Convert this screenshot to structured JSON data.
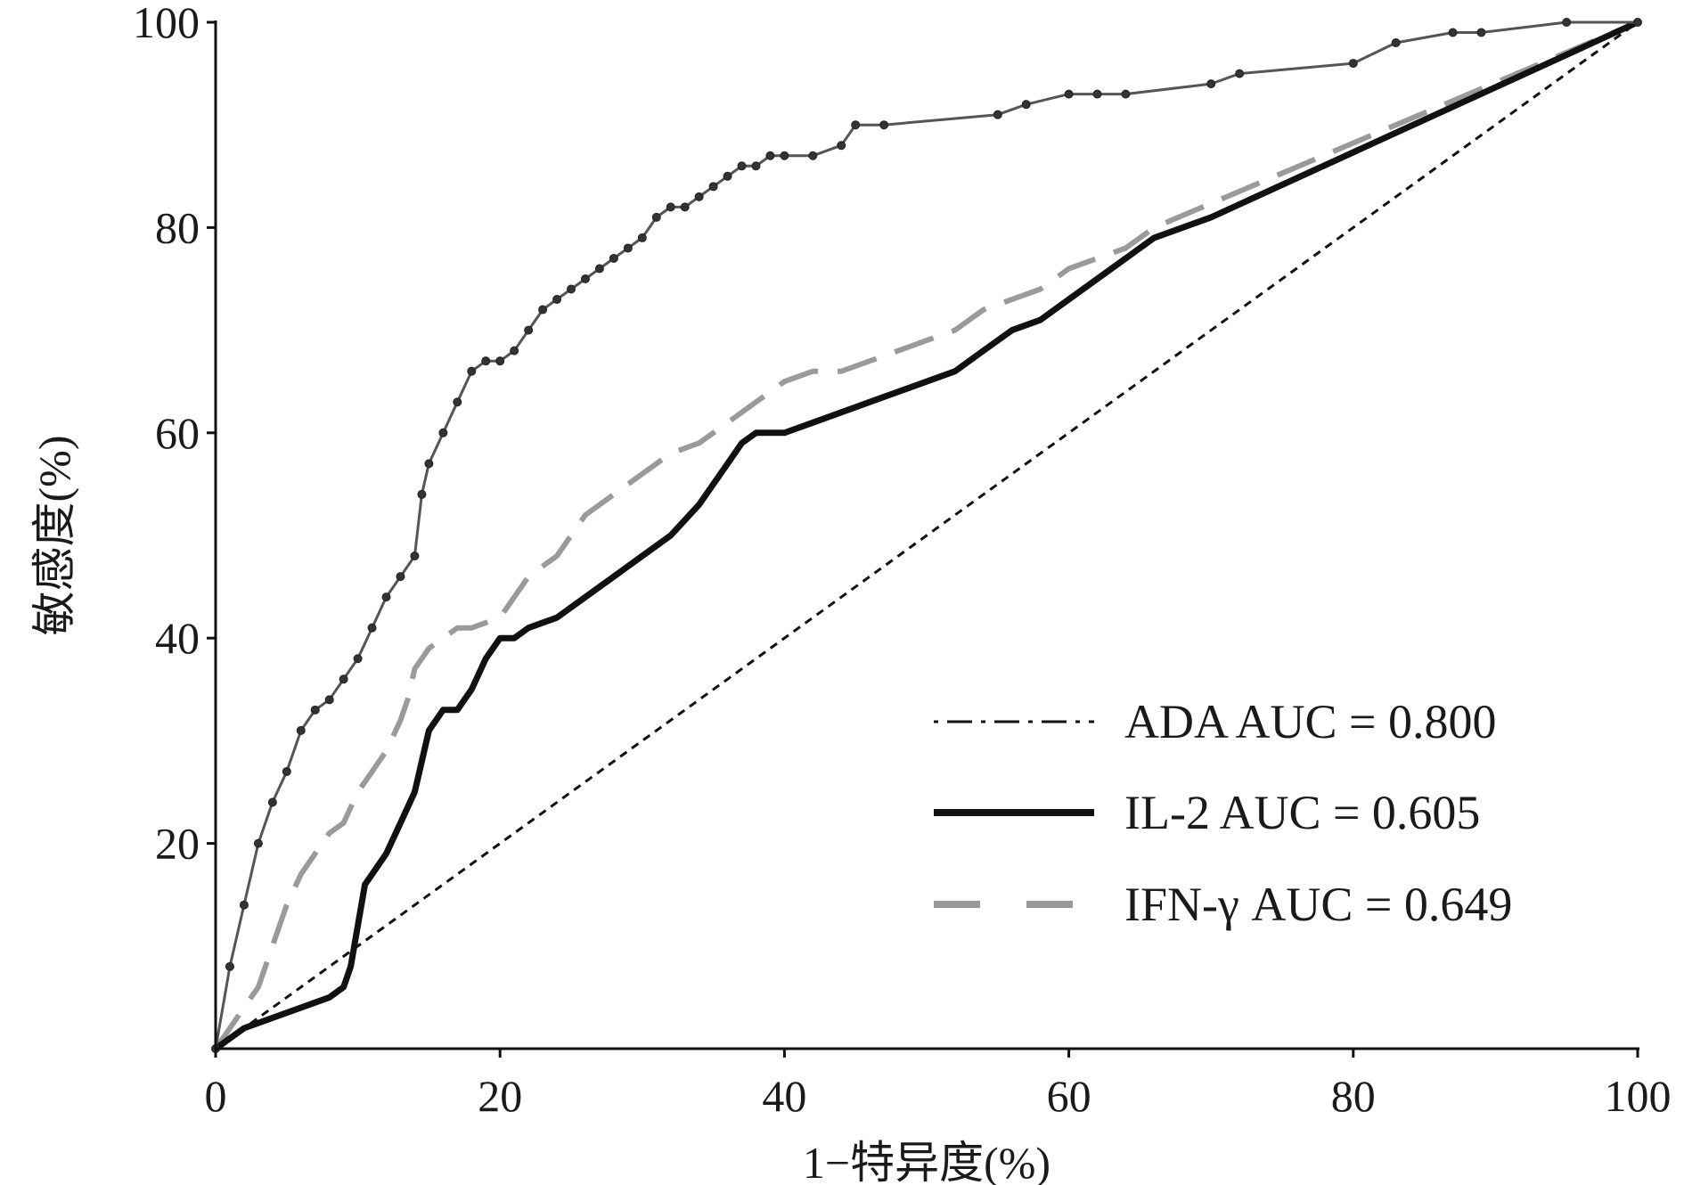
{
  "chart_data": {
    "type": "line",
    "title": "",
    "xlabel": "1−特异度(%)",
    "ylabel": "敏感度(%)",
    "xlim": [
      0,
      100
    ],
    "ylim": [
      0,
      100
    ],
    "x_ticks": [
      "0",
      "20",
      "40",
      "60",
      "80",
      "100"
    ],
    "y_ticks": [
      "20",
      "40",
      "60",
      "80",
      "100"
    ],
    "legend_position": "bottom-right",
    "reference_line": "diagonal",
    "series": [
      {
        "name": "ADA AUC = 0.800",
        "color": "#555555",
        "style": "solid-with-markers",
        "x": [
          0,
          1,
          2,
          3,
          4,
          5,
          6,
          7,
          8,
          9,
          10,
          11,
          12,
          13,
          14,
          14.5,
          15,
          16,
          17,
          18,
          19,
          20,
          21,
          22,
          23,
          24,
          25,
          26,
          27,
          28,
          29,
          30,
          31,
          32,
          33,
          34,
          35,
          36,
          37,
          38,
          39,
          40,
          42,
          44,
          45,
          47,
          55,
          57,
          60,
          62,
          64,
          70,
          72,
          80,
          83,
          87,
          89,
          95,
          100
        ],
        "y": [
          0,
          8,
          14,
          20,
          24,
          27,
          31,
          33,
          34,
          36,
          38,
          41,
          44,
          46,
          48,
          54,
          57,
          60,
          63,
          66,
          67,
          67,
          68,
          70,
          72,
          73,
          74,
          75,
          76,
          77,
          78,
          79,
          81,
          82,
          82,
          83,
          84,
          85,
          86,
          86,
          87,
          87,
          87,
          88,
          90,
          90,
          91,
          92,
          93,
          93,
          93,
          94,
          95,
          96,
          98,
          99,
          99,
          100,
          100
        ]
      },
      {
        "name": "IL-2 AUC = 0.605",
        "color": "#111111",
        "style": "thick-solid",
        "x": [
          0,
          2,
          4,
          6,
          8,
          9,
          9.5,
          10,
          10.5,
          11,
          12,
          13,
          14,
          14.5,
          15,
          16,
          17,
          18,
          19,
          20,
          21,
          22,
          24,
          26,
          28,
          30,
          32,
          34,
          35,
          36,
          37,
          38,
          40,
          42,
          44,
          46,
          48,
          50,
          52,
          54,
          56,
          58,
          60,
          62,
          64,
          66,
          68,
          70,
          100
        ],
        "y": [
          0,
          2,
          3,
          4,
          5,
          6,
          8,
          12,
          16,
          17,
          19,
          22,
          25,
          28,
          31,
          33,
          33,
          35,
          38,
          40,
          40,
          41,
          42,
          44,
          46,
          48,
          50,
          53,
          55,
          57,
          59,
          60,
          60,
          61,
          62,
          63,
          64,
          65,
          66,
          68,
          70,
          71,
          73,
          75,
          77,
          79,
          80,
          81,
          100
        ]
      },
      {
        "name": "IFN-γ AUC = 0.649",
        "color": "#9a9a9a",
        "style": "thick-dashed",
        "x": [
          0,
          1,
          2,
          3,
          4,
          5,
          6,
          7,
          8,
          9,
          10,
          11,
          12,
          13,
          13.5,
          14,
          15,
          16,
          17,
          18,
          20,
          21,
          22,
          24,
          25,
          26,
          28,
          30,
          32,
          34,
          36,
          38,
          40,
          42,
          44,
          46,
          48,
          50,
          52,
          54,
          56,
          58,
          60,
          62,
          64,
          66,
          100
        ],
        "y": [
          0,
          2,
          4,
          6,
          10,
          14,
          17,
          19,
          21,
          22,
          25,
          27,
          29,
          32,
          34,
          37,
          39,
          40,
          41,
          41,
          42,
          44,
          46,
          48,
          50,
          52,
          54,
          56,
          58,
          59,
          61,
          63,
          65,
          66,
          66,
          67,
          68,
          69,
          70,
          72,
          73,
          74,
          76,
          77,
          78,
          80,
          100
        ]
      }
    ]
  }
}
